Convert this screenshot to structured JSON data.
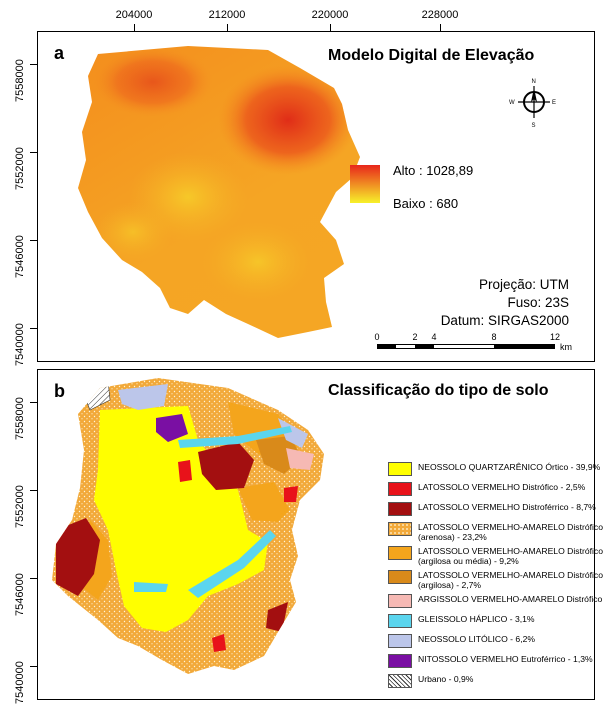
{
  "frame": {
    "x_ticks": [
      "204000",
      "212000",
      "220000",
      "228000"
    ],
    "y_ticks_top": [
      "7558000",
      "7552000",
      "7546000",
      "7540000"
    ],
    "y_ticks_bottom": [
      "7558000",
      "7552000",
      "7546000",
      "7540000"
    ]
  },
  "panel_a": {
    "letter": "a",
    "title": "Modelo Digital de Elevação",
    "elevation_legend": {
      "high_label": "Alto : 1028,89",
      "low_label": "Baixo : 680",
      "high_color": "#e8261b",
      "low_color": "#f7f12a"
    },
    "projection": {
      "line1": "Projeção: UTM",
      "line2": "Fuso: 23S",
      "line3": "Datum: SIRGAS2000"
    },
    "compass": {
      "n": "N",
      "s": "S",
      "e": "E",
      "w": "W",
      "icon": "compass-rose-icon"
    },
    "scale_bar": {
      "labels": [
        "0",
        "2",
        "4",
        "8",
        "12"
      ],
      "unit": "km"
    }
  },
  "panel_b": {
    "letter": "b",
    "title": "Classificação do tipo de solo",
    "legend": [
      {
        "label": "NEOSSOLO QUARTZARÊNICO Órtico - 39,9%",
        "color": "#ffff00",
        "pattern": "solid"
      },
      {
        "label": "LATOSSOLO VERMELHO Distrófico - 2,5%",
        "color": "#e8121a",
        "pattern": "solid"
      },
      {
        "label": "LATOSSOLO VERMELHO Distroférrico - 8,7%",
        "color": "#a30f10",
        "pattern": "solid"
      },
      {
        "label": "LATOSSOLO VERMELHO-AMARELO Distrófico (arenosa) - 23,2%",
        "color": "#f2a93a",
        "pattern": "dots"
      },
      {
        "label": "LATOSSOLO VERMELHO-AMARELO Distrófico (argilosa ou média) - 9,2%",
        "color": "#f4a51c",
        "pattern": "solid"
      },
      {
        "label": "LATOSSOLO VERMELHO-AMARELO Distrófico (argilosa) - 2,7%",
        "color": "#d98a1a",
        "pattern": "solid"
      },
      {
        "label": "ARGISSOLO VERMELHO-AMARELO Distrófico - 2,3%",
        "color": "#f6b9b4",
        "pattern": "solid"
      },
      {
        "label": "GLEISSOLO HÁPLICO - 3,1%",
        "color": "#5bd5ee",
        "pattern": "solid"
      },
      {
        "label": "NEOSSOLO LITÓLICO - 6,2%",
        "color": "#bcc6ea",
        "pattern": "solid"
      },
      {
        "label": "NITOSSOLO VERMELHO Eutroférrico - 1,3%",
        "color": "#7a0fa3",
        "pattern": "solid"
      },
      {
        "label": "Urbano - 0,9%",
        "color": "#ffffff",
        "pattern": "hatch"
      }
    ]
  }
}
